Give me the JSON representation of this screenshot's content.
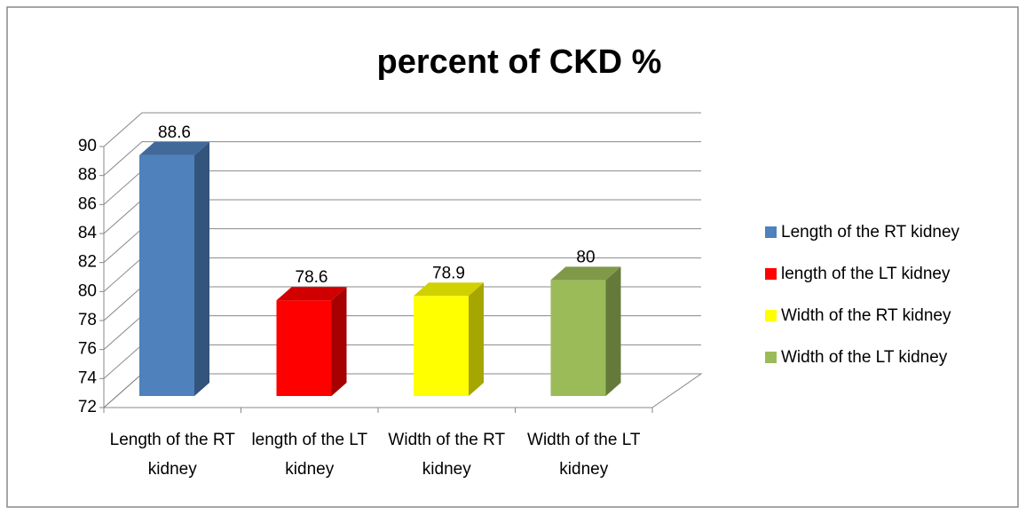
{
  "chart_data": {
    "type": "bar3d",
    "title": "percent of CKD %",
    "categories": [
      "Length of the RT kidney",
      "length of the LT kidney",
      "Width of the RT kidney",
      "Width of the LT kidney"
    ],
    "values": [
      88.6,
      78.6,
      78.9,
      80
    ],
    "colors": [
      "#4f81bd",
      "#ff0000",
      "#ffff00",
      "#9bbb59"
    ],
    "ylim": [
      72,
      90
    ],
    "yticks": [
      72,
      74,
      76,
      78,
      80,
      82,
      84,
      86,
      88,
      90
    ],
    "grid": true,
    "legend": "right"
  }
}
